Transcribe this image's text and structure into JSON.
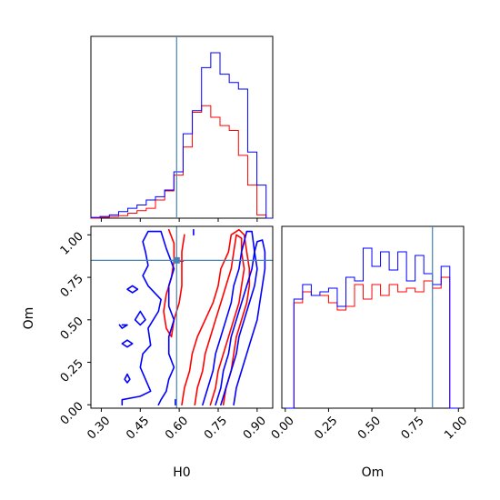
{
  "chart_data": {
    "type": "corner",
    "parameters": [
      "H0",
      "Om"
    ],
    "colors": {
      "red": "#ff0000",
      "blue": "#0000ff",
      "truth": "#4682b4"
    },
    "truth": {
      "H0": 0.59,
      "Om": 0.85
    },
    "panels": [
      {
        "type": "histogram",
        "param": "H0",
        "ylabel": "",
        "xlim": [
          0.26,
          0.96
        ],
        "ylim": [
          0,
          1
        ],
        "xticks": [
          0.3,
          0.45,
          0.6,
          0.75,
          0.9
        ],
        "bin_edges": [
          0.26,
          0.2955,
          0.331,
          0.3665,
          0.402,
          0.4375,
          0.473,
          0.5085,
          0.544,
          0.5795,
          0.615,
          0.6505,
          0.686,
          0.7215,
          0.757,
          0.7925,
          0.828,
          0.8635,
          0.899,
          0.9345,
          0.96
        ],
        "series": [
          {
            "name": "",
            "color": "#ff0000",
            "values": [
              0.0,
              0.005,
              0.01,
              0.015,
              0.03,
              0.045,
              0.06,
              0.11,
              0.165,
              0.26,
              0.43,
              0.64,
              0.68,
              0.61,
              0.56,
              0.53,
              0.38,
              0.2,
              0.02,
              0.0
            ]
          },
          {
            "name": "",
            "color": "#0000ff",
            "values": [
              0.005,
              0.01,
              0.02,
              0.04,
              0.06,
              0.08,
              0.11,
              0.13,
              0.17,
              0.28,
              0.51,
              0.65,
              0.91,
              1.0,
              0.87,
              0.82,
              0.78,
              0.4,
              0.2,
              0.0
            ]
          }
        ]
      },
      {
        "type": "contour",
        "xparam": "H0",
        "yparam": "Om",
        "xlabel": "H0",
        "ylabel": "Om",
        "xlim": [
          0.26,
          0.96
        ],
        "ylim": [
          -0.02,
          1.05
        ],
        "xticks": [
          0.3,
          0.45,
          0.6,
          0.75,
          0.9
        ],
        "yticks": [
          0.0,
          0.25,
          0.5,
          0.75,
          1.0
        ],
        "series": [
          {
            "name": "",
            "color": "#ff0000",
            "contours": [
              [
                [
                  0.61,
                  0.0
                ],
                [
                  0.62,
                  0.1
                ],
                [
                  0.64,
                  0.2
                ],
                [
                  0.65,
                  0.3
                ],
                [
                  0.67,
                  0.4
                ],
                [
                  0.7,
                  0.5
                ],
                [
                  0.73,
                  0.6
                ],
                [
                  0.75,
                  0.7
                ],
                [
                  0.76,
                  0.8
                ],
                [
                  0.79,
                  0.9
                ],
                [
                  0.8,
                  1.0
                ],
                [
                  0.83,
                  1.03
                ],
                [
                  0.85,
                  1.0
                ],
                [
                  0.86,
                  0.9
                ],
                [
                  0.87,
                  0.8
                ],
                [
                  0.87,
                  0.7
                ],
                [
                  0.86,
                  0.6
                ],
                [
                  0.84,
                  0.5
                ],
                [
                  0.82,
                  0.4
                ],
                [
                  0.81,
                  0.3
                ],
                [
                  0.8,
                  0.2
                ],
                [
                  0.78,
                  0.1
                ],
                [
                  0.77,
                  0.0
                ]
              ],
              [
                [
                  0.66,
                  0.0
                ],
                [
                  0.67,
                  0.1
                ],
                [
                  0.69,
                  0.2
                ],
                [
                  0.7,
                  0.3
                ],
                [
                  0.72,
                  0.4
                ],
                [
                  0.74,
                  0.5
                ],
                [
                  0.76,
                  0.6
                ],
                [
                  0.78,
                  0.7
                ],
                [
                  0.8,
                  0.8
                ],
                [
                  0.81,
                  0.9
                ],
                [
                  0.82,
                  1.0
                ],
                [
                  0.84,
                  0.98
                ],
                [
                  0.84,
                  0.9
                ],
                [
                  0.85,
                  0.8
                ],
                [
                  0.84,
                  0.7
                ],
                [
                  0.83,
                  0.6
                ],
                [
                  0.81,
                  0.5
                ],
                [
                  0.79,
                  0.4
                ],
                [
                  0.77,
                  0.3
                ],
                [
                  0.75,
                  0.2
                ],
                [
                  0.74,
                  0.1
                ],
                [
                  0.72,
                  0.0
                ]
              ],
              [
                [
                  0.56,
                  1.03
                ],
                [
                  0.58,
                  0.95
                ],
                [
                  0.58,
                  0.85
                ],
                [
                  0.57,
                  0.75
                ],
                [
                  0.55,
                  0.65
                ],
                [
                  0.54,
                  0.55
                ],
                [
                  0.55,
                  0.45
                ],
                [
                  0.57,
                  0.4
                ],
                [
                  0.58,
                  0.5
                ],
                [
                  0.6,
                  0.6
                ],
                [
                  0.61,
                  0.7
                ],
                [
                  0.61,
                  0.8
                ],
                [
                  0.61,
                  0.9
                ],
                [
                  0.62,
                  1.0
                ]
              ],
              [
                [
                  0.605,
                  0.845
                ],
                [
                  0.615,
                  0.845
                ]
              ]
            ]
          },
          {
            "name": "",
            "color": "#0000ff",
            "contours": [
              [
                [
                  0.74,
                  0.0
                ],
                [
                  0.76,
                  0.1
                ],
                [
                  0.77,
                  0.2
                ],
                [
                  0.79,
                  0.3
                ],
                [
                  0.8,
                  0.4
                ],
                [
                  0.82,
                  0.5
                ],
                [
                  0.84,
                  0.6
                ],
                [
                  0.86,
                  0.7
                ],
                [
                  0.88,
                  0.8
                ],
                [
                  0.89,
                  0.9
                ],
                [
                  0.9,
                  0.96
                ],
                [
                  0.92,
                  0.97
                ],
                [
                  0.93,
                  0.9
                ],
                [
                  0.93,
                  0.8
                ],
                [
                  0.92,
                  0.7
                ],
                [
                  0.91,
                  0.6
                ],
                [
                  0.9,
                  0.5
                ],
                [
                  0.88,
                  0.4
                ],
                [
                  0.86,
                  0.3
                ],
                [
                  0.84,
                  0.2
                ],
                [
                  0.82,
                  0.1
                ],
                [
                  0.81,
                  0.0
                ]
              ],
              [
                [
                  0.69,
                  0.0
                ],
                [
                  0.71,
                  0.1
                ],
                [
                  0.73,
                  0.2
                ],
                [
                  0.74,
                  0.3
                ],
                [
                  0.76,
                  0.4
                ],
                [
                  0.78,
                  0.5
                ],
                [
                  0.8,
                  0.6
                ],
                [
                  0.81,
                  0.7
                ],
                [
                  0.83,
                  0.8
                ],
                [
                  0.84,
                  0.9
                ],
                [
                  0.86,
                  1.02
                ],
                [
                  0.88,
                  1.02
                ],
                [
                  0.89,
                  0.9
                ],
                [
                  0.9,
                  0.8
                ],
                [
                  0.89,
                  0.7
                ],
                [
                  0.87,
                  0.6
                ],
                [
                  0.85,
                  0.5
                ],
                [
                  0.83,
                  0.4
                ],
                [
                  0.82,
                  0.3
                ],
                [
                  0.8,
                  0.2
                ],
                [
                  0.78,
                  0.1
                ],
                [
                  0.76,
                  0.0
                ]
              ],
              [
                [
                  0.38,
                  0.0
                ],
                [
                  0.38,
                  0.03
                ],
                [
                  0.45,
                  0.05
                ],
                [
                  0.49,
                  0.08
                ],
                [
                  0.47,
                  0.15
                ],
                [
                  0.45,
                  0.22
                ],
                [
                  0.46,
                  0.3
                ],
                [
                  0.49,
                  0.35
                ],
                [
                  0.48,
                  0.45
                ],
                [
                  0.52,
                  0.55
                ],
                [
                  0.53,
                  0.62
                ],
                [
                  0.48,
                  0.7
                ],
                [
                  0.46,
                  0.76
                ],
                [
                  0.48,
                  0.82
                ],
                [
                  0.47,
                  0.9
                ],
                [
                  0.46,
                  0.96
                ],
                [
                  0.48,
                  1.02
                ],
                [
                  0.53,
                  1.02
                ],
                [
                  0.55,
                  0.92
                ],
                [
                  0.58,
                  0.8
                ],
                [
                  0.56,
                  0.7
                ],
                [
                  0.56,
                  0.58
                ],
                [
                  0.58,
                  0.5
                ],
                [
                  0.56,
                  0.4
                ],
                [
                  0.56,
                  0.3
                ],
                [
                  0.58,
                  0.22
                ],
                [
                  0.56,
                  0.15
                ],
                [
                  0.55,
                  0.08
                ],
                [
                  0.53,
                  0.03
                ],
                [
                  0.52,
                  0.0
                ]
              ],
              [
                [
                  0.45,
                  0.55
                ],
                [
                  0.47,
                  0.5
                ],
                [
                  0.45,
                  0.47
                ],
                [
                  0.43,
                  0.5
                ],
                [
                  0.45,
                  0.55
                ]
              ],
              [
                [
                  0.4,
                  0.38
                ],
                [
                  0.42,
                  0.36
                ],
                [
                  0.4,
                  0.34
                ],
                [
                  0.38,
                  0.36
                ],
                [
                  0.4,
                  0.38
                ]
              ],
              [
                [
                  0.42,
                  0.7
                ],
                [
                  0.44,
                  0.68
                ],
                [
                  0.42,
                  0.66
                ],
                [
                  0.4,
                  0.68
                ],
                [
                  0.42,
                  0.7
                ]
              ],
              [
                [
                  0.4,
                  0.18
                ],
                [
                  0.41,
                  0.15
                ],
                [
                  0.4,
                  0.13
                ],
                [
                  0.39,
                  0.15
                ],
                [
                  0.4,
                  0.18
                ]
              ],
              [
                [
                  0.38,
                  0.47
                ],
                [
                  0.4,
                  0.47
                ],
                [
                  0.38,
                  0.45
                ],
                [
                  0.37,
                  0.47
                ]
              ],
              [
                [
                  0.655,
                  1.03
                ],
                [
                  0.655,
                  1.0
                ]
              ],
              [
                [
                  0.585,
                  0.0
                ],
                [
                  0.585,
                  0.03
                ]
              ]
            ]
          }
        ]
      },
      {
        "type": "histogram",
        "param": "Om",
        "xlabel": "Om",
        "xlim": [
          -0.02,
          1.03
        ],
        "ylim": [
          0,
          1
        ],
        "xticks": [
          0.0,
          0.25,
          0.5,
          0.75,
          1.0
        ],
        "bin_edges": [
          0.0,
          0.05,
          0.1,
          0.15,
          0.2,
          0.25,
          0.3,
          0.35,
          0.4,
          0.45,
          0.5,
          0.55,
          0.6,
          0.65,
          0.7,
          0.75,
          0.8,
          0.85,
          0.9,
          0.95,
          1.0
        ],
        "series": [
          {
            "name": "",
            "color": "#ff0000",
            "values": [
              0.0,
              0.58,
              0.64,
              0.62,
              0.62,
              0.58,
              0.54,
              0.56,
              0.68,
              0.6,
              0.68,
              0.62,
              0.68,
              0.64,
              0.66,
              0.64,
              0.7,
              0.66,
              0.72,
              0.0
            ]
          },
          {
            "name": "",
            "color": "#0000ff",
            "values": [
              0.0,
              0.6,
              0.68,
              0.62,
              0.64,
              0.66,
              0.56,
              0.72,
              0.7,
              0.88,
              0.78,
              0.86,
              0.76,
              0.86,
              0.7,
              0.84,
              0.74,
              0.68,
              0.78,
              0.0
            ]
          }
        ]
      }
    ]
  }
}
